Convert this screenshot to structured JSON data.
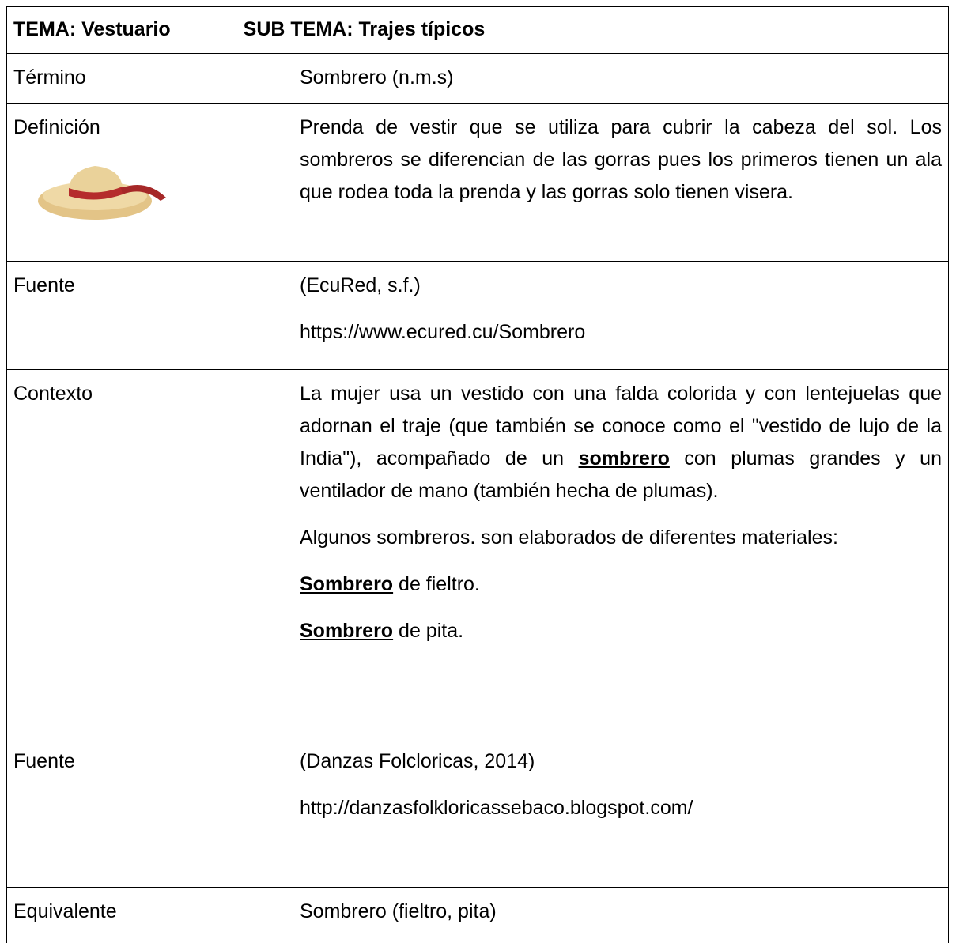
{
  "header": {
    "tema": "TEMA: Vestuario",
    "subtema": "SUB TEMA: Trajes típicos"
  },
  "rows": [
    {
      "label": "Término",
      "content": "Sombrero (n.m.s)"
    },
    {
      "label": "Definición",
      "content": "Prenda de vestir que se utiliza para cubrir la cabeza del sol. Los sombreros se diferencian de las gorras pues los primeros tienen un ala que rodea toda la prenda y las gorras solo tienen visera."
    },
    {
      "label": "Fuente",
      "citation": "(EcuRed, s.f.)",
      "url": "https://www.ecured.cu/Sombrero"
    },
    {
      "label": "Contexto",
      "paragraph": [
        "La mujer usa un vestido con una falda colorida y con lentejuelas que adornan el traje (que también se conoce como el \"vestido de lujo de la India\"), acompañado de un",
        "sombrero",
        "con plumas grandes y un ventilador de mano (también hecha de plumas)."
      ],
      "intro": "Algunos sombreros. son elaborados de diferentes materiales:",
      "items": [
        [
          "Sombrero",
          "de fieltro."
        ],
        [
          "Sombrero",
          "de pita."
        ]
      ]
    },
    {
      "label": "Fuente",
      "citation": "(Danzas Folcloricas, 2014)",
      "url": "http://danzasfolkloricassebaco.blogspot.com/"
    },
    {
      "label": "Equivalente",
      "content": "Sombrero (fieltro, pita)"
    }
  ]
}
